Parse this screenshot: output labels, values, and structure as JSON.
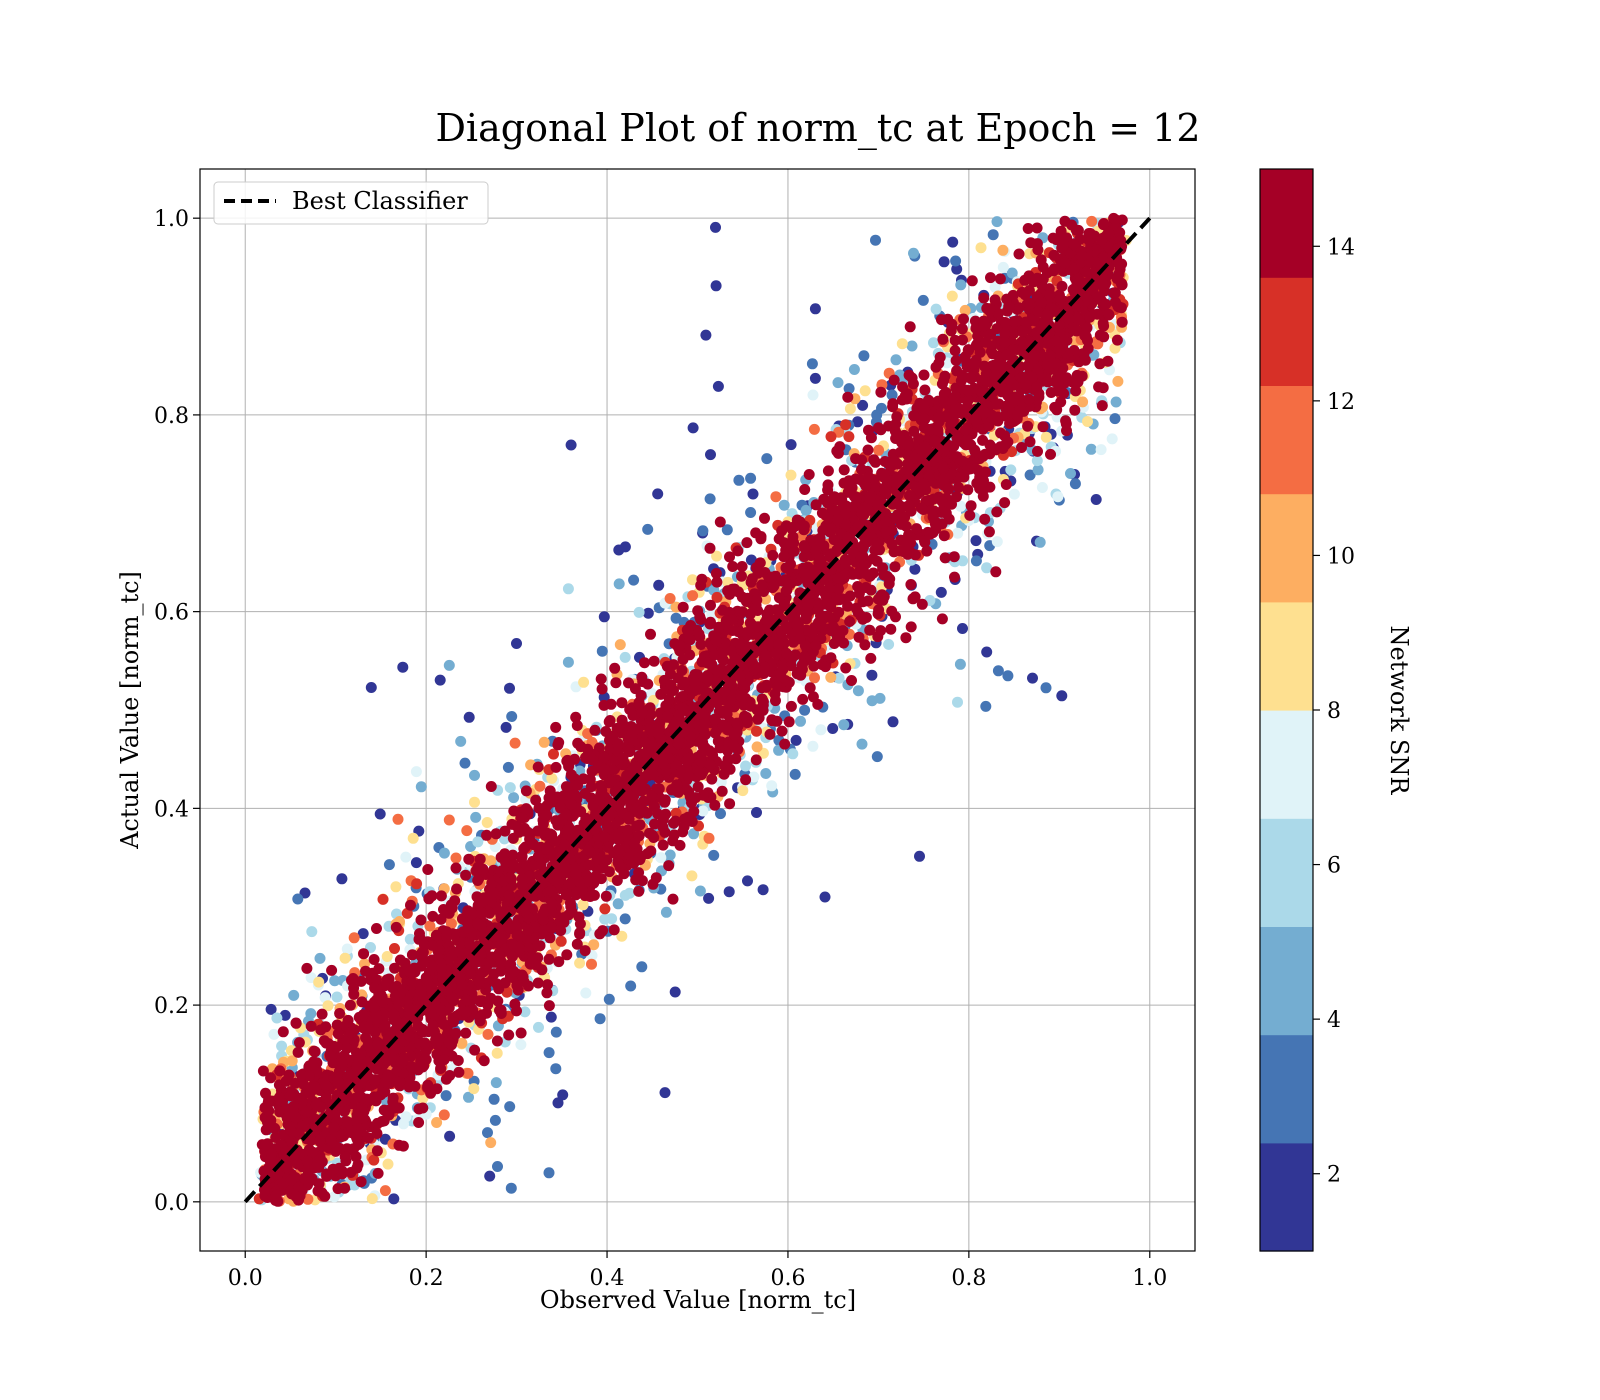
{
  "chart_data": {
    "type": "scatter",
    "title": "Diagonal Plot of norm_tc at Epoch = 12",
    "xlabel": "Observed Value [norm_tc]",
    "ylabel": "Actual Value [norm_tc]",
    "xlim": [
      -0.05,
      1.05
    ],
    "ylim": [
      -0.05,
      1.05
    ],
    "x_ticks": [
      "0.0",
      "0.2",
      "0.4",
      "0.6",
      "0.8",
      "1.0"
    ],
    "y_ticks": [
      "0.0",
      "0.2",
      "0.4",
      "0.6",
      "0.8",
      "1.0"
    ],
    "grid": true,
    "legend": {
      "placement": "upper-left",
      "entries": [
        "Best Classifier"
      ]
    },
    "reference_line": {
      "name": "Best Classifier",
      "x": [
        0.0,
        1.0
      ],
      "y": [
        0.0,
        1.0
      ],
      "style": "dashed",
      "color": "#000000"
    },
    "colorbar": {
      "label": "Network SNR",
      "range": [
        1,
        15
      ],
      "ticks": [
        "2",
        "4",
        "6",
        "8",
        "10",
        "12",
        "14"
      ],
      "bins": 10,
      "colors": [
        "#313695",
        "#4575b4",
        "#74add1",
        "#abd9e9",
        "#e0f3f8",
        "#fee090",
        "#fdae61",
        "#f46d43",
        "#d73027",
        "#a50026"
      ]
    },
    "scatter_description": {
      "x_range": [
        0.02,
        0.97
      ],
      "y_range": [
        0.0,
        1.0
      ],
      "pattern": "high SNR concentrated along y=x diagonal, low SNR points spread far from diagonal"
    }
  }
}
